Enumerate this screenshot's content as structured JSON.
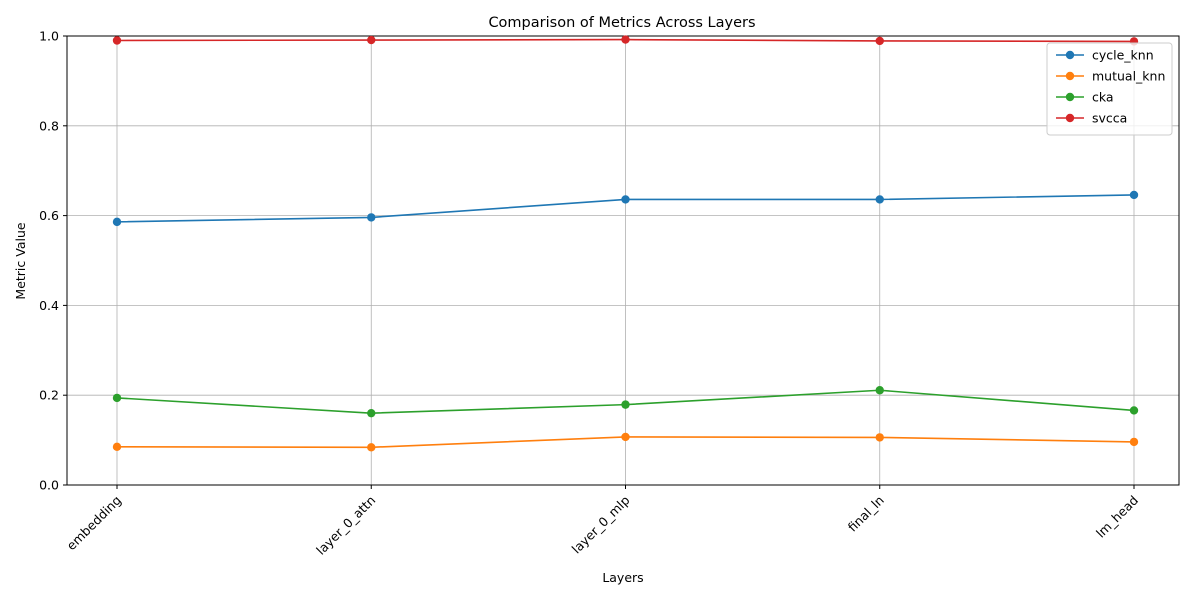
{
  "chart_data": {
    "type": "line",
    "title": "Comparison of Metrics Across Layers",
    "xlabel": "Layers",
    "ylabel": "Metric Value",
    "categories": [
      "embedding",
      "layer_0_attn",
      "layer_0_mlp",
      "final_ln",
      "lm_head"
    ],
    "ylim": [
      0,
      1
    ],
    "yticks": [
      0.0,
      0.2,
      0.4,
      0.6,
      0.8,
      1.0
    ],
    "ytick_labels": [
      "0.0",
      "0.2",
      "0.4",
      "0.6",
      "0.8",
      "1.0"
    ],
    "grid": true,
    "legend_position": "top-right",
    "series": [
      {
        "name": "cycle_knn",
        "color": "#1f77b4",
        "values": [
          0.586,
          0.596,
          0.636,
          0.636,
          0.646
        ]
      },
      {
        "name": "mutual_knn",
        "color": "#ff7f0e",
        "values": [
          0.085,
          0.084,
          0.107,
          0.106,
          0.096
        ]
      },
      {
        "name": "cka",
        "color": "#2ca02c",
        "values": [
          0.194,
          0.16,
          0.179,
          0.211,
          0.166
        ]
      },
      {
        "name": "svcca",
        "color": "#d62728",
        "values": [
          0.99,
          0.991,
          0.992,
          0.989,
          0.988
        ]
      }
    ]
  }
}
